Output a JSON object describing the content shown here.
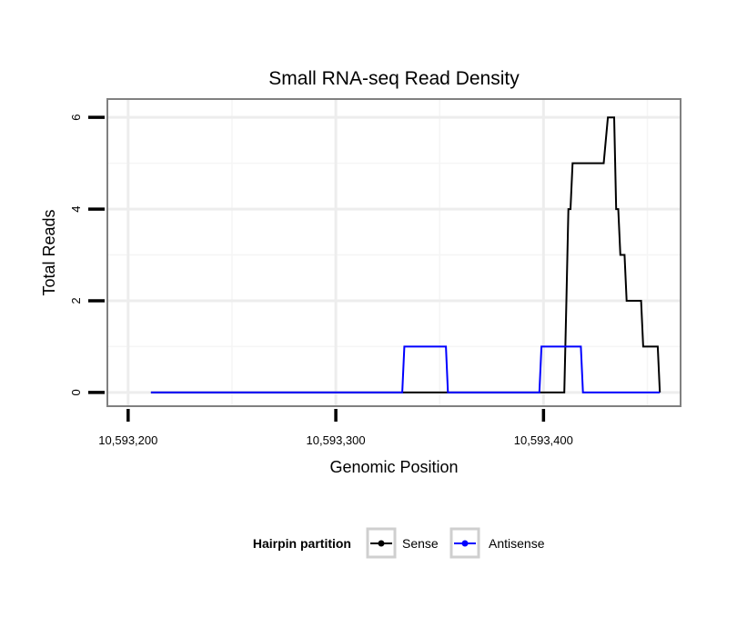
{
  "chart_data": {
    "type": "line",
    "title": "Small RNA-seq Read Density",
    "xlabel": "Genomic Position",
    "ylabel": "Total Reads",
    "xlim": [
      10593190,
      10593466
    ],
    "ylim": [
      -0.3,
      6.4
    ],
    "x_ticks": [
      10593200,
      10593300,
      10593400
    ],
    "x_tick_labels": [
      "10,593,200",
      "10,593,300",
      "10,593,400"
    ],
    "x_minor_grid": [
      10593250,
      10593350,
      10593450
    ],
    "y_ticks": [
      0,
      2,
      4,
      6
    ],
    "y_tick_labels": [
      "0",
      "2",
      "4",
      "6"
    ],
    "y_minor_grid": [
      1,
      3,
      5
    ],
    "grid": true,
    "legend": {
      "title": "Hairpin partition",
      "position": "bottom"
    },
    "series": [
      {
        "name": "Sense",
        "color": "#000000",
        "x": [
          10593211,
          10593410,
          10593411,
          10593412,
          10593413,
          10593414,
          10593415,
          10593429,
          10593430,
          10593431,
          10593432,
          10593434,
          10593435,
          10593436,
          10593437,
          10593438,
          10593439,
          10593440,
          10593441,
          10593442,
          10593447,
          10593448,
          10593449,
          10593455,
          10593456
        ],
        "y": [
          0,
          0,
          2,
          4,
          4,
          5,
          5,
          5,
          5.5,
          6,
          6,
          6,
          4,
          4,
          3,
          3,
          3,
          2,
          2,
          2,
          2,
          1,
          1,
          1,
          0
        ]
      },
      {
        "name": "Antisense",
        "color": "#0000ff",
        "x": [
          10593211,
          10593332,
          10593333,
          10593353,
          10593354,
          10593398,
          10593399,
          10593418,
          10593419,
          10593456
        ],
        "y": [
          0,
          0,
          1,
          1,
          0,
          0,
          1,
          1,
          0,
          0
        ]
      }
    ]
  }
}
